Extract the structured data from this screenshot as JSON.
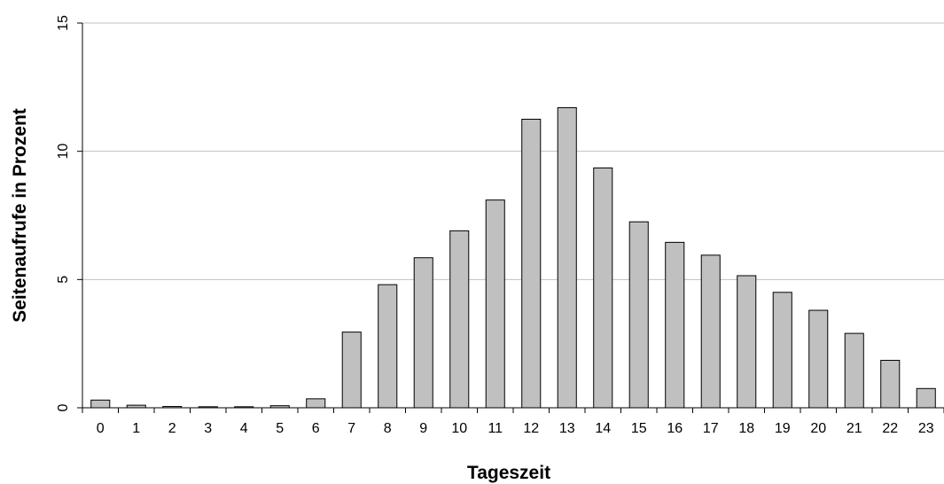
{
  "chart_data": {
    "type": "bar",
    "categories": [
      "0",
      "1",
      "2",
      "3",
      "4",
      "5",
      "6",
      "7",
      "8",
      "9",
      "10",
      "11",
      "12",
      "13",
      "14",
      "15",
      "16",
      "17",
      "18",
      "19",
      "20",
      "21",
      "22",
      "23"
    ],
    "values": [
      0.3,
      0.1,
      0.05,
      0.04,
      0.04,
      0.08,
      0.35,
      2.95,
      4.8,
      5.85,
      6.9,
      8.1,
      11.25,
      11.7,
      9.35,
      7.25,
      6.45,
      5.95,
      5.15,
      4.5,
      3.8,
      2.9,
      1.85,
      0.75
    ],
    "xlabel": "Tageszeit",
    "ylabel": "Seitenaufrufe in Prozent",
    "ylim": [
      0,
      15
    ],
    "yticks": [
      "0",
      "5",
      "10",
      "15"
    ],
    "grid": true,
    "colors": {
      "bar_fill": "#c0c0c0",
      "bar_stroke": "#000000",
      "grid": "#c0c0c0"
    }
  }
}
